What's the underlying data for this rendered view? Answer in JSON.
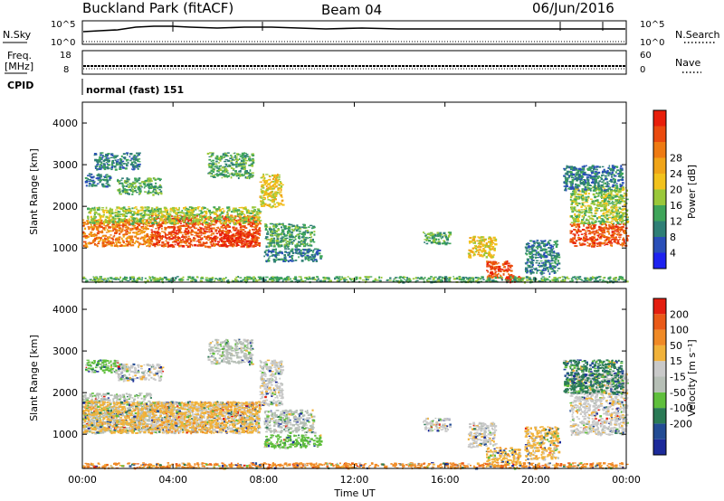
{
  "header": {
    "site": "Buckland Park (fitACF)",
    "beam": "Beam 04",
    "date": "06/Jun/2016"
  },
  "status_panels": {
    "nsky_label": "N.Sky",
    "nsearch_label": "N.Search",
    "noise_ticks_left": [
      "10^5",
      "10^0"
    ],
    "noise_ticks_right": [
      "10^5",
      "10^0"
    ],
    "freq_label": "Freq.",
    "freq_unit": "[MHz]",
    "freq_ticks": [
      "18",
      "8"
    ],
    "nave_label": "Nave",
    "nave_ticks": [
      "60",
      "0"
    ],
    "cpid_label": "CPID",
    "cpid_text": "normal (fast) 151"
  },
  "axes": {
    "xlabel": "Time UT",
    "x_ticks": [
      "00:00",
      "04:00",
      "08:00",
      "12:00",
      "16:00",
      "20:00",
      "00:00"
    ],
    "ylabel": "Slant Range [km]",
    "y_ticks": [
      "1000",
      "2000",
      "3000",
      "4000"
    ]
  },
  "colorbars": {
    "power": {
      "label": "Power [dB]",
      "ticks": [
        "4",
        "8",
        "12",
        "16",
        "20",
        "24",
        "28"
      ],
      "colors": [
        "#1e22f0",
        "#2a4fb8",
        "#2f7f76",
        "#3fa55a",
        "#9ac83a",
        "#f2c21c",
        "#f0a418",
        "#ee7a12",
        "#ea4a0e",
        "#e81e0a"
      ]
    },
    "velocity": {
      "label": "Velocity [m s⁻¹]",
      "ticks": [
        "200",
        "100",
        "50",
        "15",
        "-15",
        "-50",
        "-100",
        "-200"
      ],
      "colors": [
        "#1c2a9a",
        "#234c94",
        "#2a7a55",
        "#5fbf3c",
        "#b6bfb6",
        "#c9c9c9",
        "#f1b23a",
        "#f08a26",
        "#ea5a18",
        "#e41e10"
      ]
    }
  },
  "chart_data": {
    "type": "heatmap",
    "x_range_hours": [
      0,
      24
    ],
    "y_range_km": [
      180,
      4500
    ],
    "power_blobs": [
      {
        "t": [
          0.0,
          3.0
        ],
        "r": [
          1050,
          1700
        ],
        "level": 7
      },
      {
        "t": [
          3.0,
          7.8
        ],
        "r": [
          1050,
          1800
        ],
        "level": 8
      },
      {
        "t": [
          6.0,
          7.6
        ],
        "r": [
          1050,
          1400
        ],
        "level": 9
      },
      {
        "t": [
          0.2,
          7.8
        ],
        "r": [
          1600,
          2000
        ],
        "level": 4
      },
      {
        "t": [
          0.1,
          1.2
        ],
        "r": [
          2500,
          2800
        ],
        "level": 2
      },
      {
        "t": [
          1.5,
          3.5
        ],
        "r": [
          2300,
          2700
        ],
        "level": 3
      },
      {
        "t": [
          0.5,
          2.5
        ],
        "r": [
          2900,
          3300
        ],
        "level": 2
      },
      {
        "t": [
          5.5,
          7.5
        ],
        "r": [
          2700,
          3300
        ],
        "level": 3
      },
      {
        "t": [
          7.8,
          8.8
        ],
        "r": [
          2000,
          2800
        ],
        "level": 5
      },
      {
        "t": [
          8.0,
          10.2
        ],
        "r": [
          1050,
          1600
        ],
        "level": 3
      },
      {
        "t": [
          8.0,
          10.5
        ],
        "r": [
          700,
          1000
        ],
        "level": 2
      },
      {
        "t": [
          15.0,
          16.2
        ],
        "r": [
          1100,
          1400
        ],
        "level": 3
      },
      {
        "t": [
          17.0,
          18.2
        ],
        "r": [
          800,
          1300
        ],
        "level": 5
      },
      {
        "t": [
          17.8,
          18.9
        ],
        "r": [
          300,
          700
        ],
        "level": 8
      },
      {
        "t": [
          18.6,
          19.3
        ],
        "r": [
          200,
          350
        ],
        "level": 9
      },
      {
        "t": [
          19.5,
          21.0
        ],
        "r": [
          400,
          1200
        ],
        "level": 2
      },
      {
        "t": [
          21.5,
          24.0
        ],
        "r": [
          1050,
          1600
        ],
        "level": 8
      },
      {
        "t": [
          21.5,
          24.0
        ],
        "r": [
          1600,
          2500
        ],
        "level": 4
      },
      {
        "t": [
          21.2,
          23.8
        ],
        "r": [
          2400,
          3000
        ],
        "level": 2
      },
      {
        "t": [
          0.0,
          24.0
        ],
        "r": [
          200,
          330
        ],
        "level": 3
      }
    ],
    "velocity_blobs": [
      {
        "t": [
          0.0,
          3.0
        ],
        "r": [
          1050,
          2000
        ],
        "cat": 4
      },
      {
        "t": [
          3.0,
          7.8
        ],
        "r": [
          1050,
          1800
        ],
        "cat": 5
      },
      {
        "t": [
          0.0,
          7.8
        ],
        "r": [
          1050,
          1800
        ],
        "cat": 6
      },
      {
        "t": [
          0.1,
          1.5
        ],
        "r": [
          2500,
          2800
        ],
        "cat": 3
      },
      {
        "t": [
          1.5,
          3.5
        ],
        "r": [
          2300,
          2700
        ],
        "cat": 5
      },
      {
        "t": [
          5.5,
          7.5
        ],
        "r": [
          2700,
          3300
        ],
        "cat": 4
      },
      {
        "t": [
          7.8,
          8.8
        ],
        "r": [
          1700,
          2800
        ],
        "cat": 5
      },
      {
        "t": [
          8.0,
          10.2
        ],
        "r": [
          1050,
          1600
        ],
        "cat": 4
      },
      {
        "t": [
          8.0,
          10.5
        ],
        "r": [
          700,
          1000
        ],
        "cat": 3
      },
      {
        "t": [
          15.0,
          16.2
        ],
        "r": [
          1100,
          1400
        ],
        "cat": 5
      },
      {
        "t": [
          17.0,
          18.2
        ],
        "r": [
          700,
          1300
        ],
        "cat": 5
      },
      {
        "t": [
          17.8,
          19.3
        ],
        "r": [
          250,
          700
        ],
        "cat": 6
      },
      {
        "t": [
          19.5,
          21.0
        ],
        "r": [
          400,
          1200
        ],
        "cat": 6
      },
      {
        "t": [
          21.5,
          24.0
        ],
        "r": [
          1000,
          2500
        ],
        "cat": 5
      },
      {
        "t": [
          21.2,
          23.8
        ],
        "r": [
          2000,
          2800
        ],
        "cat": 2
      },
      {
        "t": [
          0.0,
          24.0
        ],
        "r": [
          200,
          330
        ],
        "cat": 7
      }
    ]
  }
}
